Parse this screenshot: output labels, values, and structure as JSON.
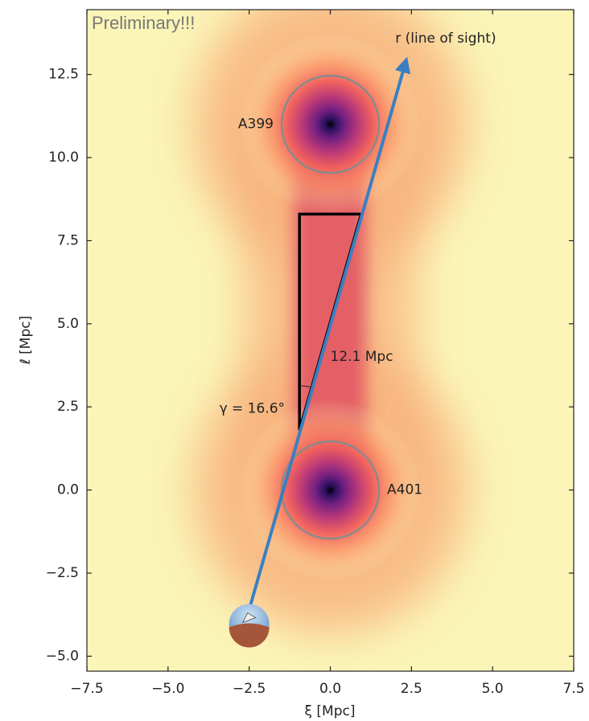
{
  "chart_data": {
    "type": "image",
    "xlabel": "ξ [Mpc]",
    "ylabel": "ℓ [Mpc]",
    "xlim": [
      -7.5,
      7.5
    ],
    "ylim": [
      -5.45,
      14.45
    ],
    "xticks": [
      {
        "value": -7.5,
        "label": "−7.5"
      },
      {
        "value": -5,
        "label": "−5.0"
      },
      {
        "value": -2.5,
        "label": "−2.5"
      },
      {
        "value": 0,
        "label": "0.0"
      },
      2.5,
      {
        "value": 5,
        "label": "5.0"
      },
      7.5
    ],
    "yticks": [
      {
        "value": -5,
        "label": "−5.0"
      },
      {
        "value": -2.5,
        "label": "−2.5"
      },
      {
        "value": 0,
        "label": "0.0"
      },
      2.5,
      {
        "value": 5,
        "label": "5.0"
      },
      7.5,
      {
        "value": 10,
        "label": "10.0"
      },
      12.5
    ],
    "clusters": [
      {
        "name": "A399",
        "x": 0,
        "y": 11,
        "radius": 1.5
      },
      {
        "name": "A401",
        "x": 0,
        "y": 0,
        "radius": 1.5
      }
    ],
    "line_of_sight": {
      "label": "r (line of sight)",
      "x": [
        -2.5,
        2.3
      ],
      "y": [
        -3.6,
        12.8
      ],
      "color": "#3a7fc1"
    },
    "triangle": {
      "x": [
        -0.95,
        -0.95,
        0.95
      ],
      "y": [
        1.8,
        8.3,
        8.3
      ]
    },
    "annotations": [
      "12.1 Mpc",
      "γ = 16.6°"
    ],
    "watermark": "Preliminary!!!"
  }
}
